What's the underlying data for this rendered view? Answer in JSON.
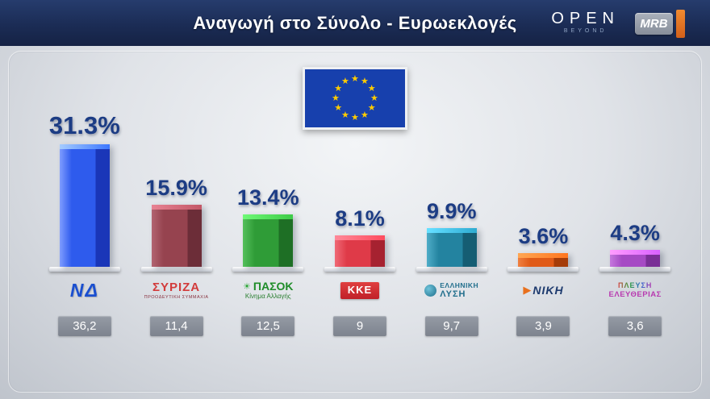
{
  "header": {
    "title": "Αναγωγή στο Σύνολο - Ευρωεκλογές",
    "open_logo": "OPEN",
    "open_sub": "BEYOND",
    "mrb_logo": "MRB",
    "accent_orange": "#e8701e",
    "header_navy": "#1b2c55"
  },
  "chart_data": {
    "type": "bar",
    "title": "Αναγωγή στο Σύνολο - Ευρωεκλογές",
    "ylim": [
      0,
      35
    ],
    "legend_position": "none",
    "grid": false,
    "categories": [
      "ΝΔ",
      "ΣΥΡΙΖΑ",
      "ΠΑΣΟΚ Κίνημα Αλλαγής",
      "ΚΚΕ",
      "ΕΛΛΗΝΙΚΗ ΛΥΣΗ",
      "ΝΙΚΗ",
      "ΠΛΕΥΣΗ ΕΛΕΥΘΕΡΙΑΣ"
    ],
    "values": [
      31.3,
      15.9,
      13.4,
      8.1,
      9.9,
      3.6,
      4.3
    ],
    "previous_values": [
      "36,2",
      "11,4",
      "12,5",
      "9",
      "9,7",
      "3,9",
      "3,6"
    ],
    "parties": [
      {
        "name": "ΝΔ",
        "value": 31.3,
        "pct_label": "31.3%",
        "prev": "36,2",
        "bar_color": "#2e5bed",
        "bar_dark": "#1a36b8",
        "bar_light": "#7f9dff",
        "logo_line1": "ΝΔ",
        "logo_line2": ""
      },
      {
        "name": "ΣΥΡΙΖΑ",
        "value": 15.9,
        "pct_label": "15.9%",
        "prev": "11,4",
        "bar_color": "#96434f",
        "bar_dark": "#6c2d38",
        "bar_light": "#b26471",
        "logo_line1": "ΣΥΡΙΖΑ",
        "logo_line2": "ΠΡΟΟΔΕΥΤΙΚΗ ΣΥΜΜΑΧΙΑ"
      },
      {
        "name": "ΠΑΣΟΚ",
        "value": 13.4,
        "pct_label": "13.4%",
        "prev": "12,5",
        "bar_color": "#2f9c37",
        "bar_dark": "#1e6f25",
        "bar_light": "#55c05b",
        "logo_line1": "ΠΑΣΟΚ",
        "logo_line2": "Κίνημα Αλλαγής"
      },
      {
        "name": "ΚΚΕ",
        "value": 8.1,
        "pct_label": "8.1%",
        "prev": "9",
        "bar_color": "#df3a48",
        "bar_dark": "#a62230",
        "bar_light": "#f06a76",
        "logo_line1": "ΚΚΕ",
        "logo_line2": ""
      },
      {
        "name": "ΕΛΛΗΝΙΚΗ ΛΥΣΗ",
        "value": 9.9,
        "pct_label": "9.9%",
        "prev": "9,7",
        "bar_color": "#2383a0",
        "bar_dark": "#155d73",
        "bar_light": "#4fadc8",
        "logo_line1": "ΕΛΛΗΝΙΚΗ",
        "logo_line2": "ΛΥΣΗ"
      },
      {
        "name": "ΝΙΚΗ",
        "value": 3.6,
        "pct_label": "3.6%",
        "prev": "3,9",
        "bar_color": "#e05a17",
        "bar_dark": "#a53c08",
        "bar_light": "#f08040",
        "logo_line1": "ΝΙΚΗ",
        "logo_line2": ""
      },
      {
        "name": "ΠΛΕΥΣΗ ΕΛΕΥΘΕΡΙΑΣ",
        "value": 4.3,
        "pct_label": "4.3%",
        "prev": "3,6",
        "bar_color": "#a64ac4",
        "bar_dark": "#7a2f96",
        "bar_light": "#c578dd",
        "logo_line1": "ΠΛΕΥΣΗ",
        "logo_line2": "ΕΛΕΥΘΕΡΙΑΣ"
      }
    ]
  }
}
